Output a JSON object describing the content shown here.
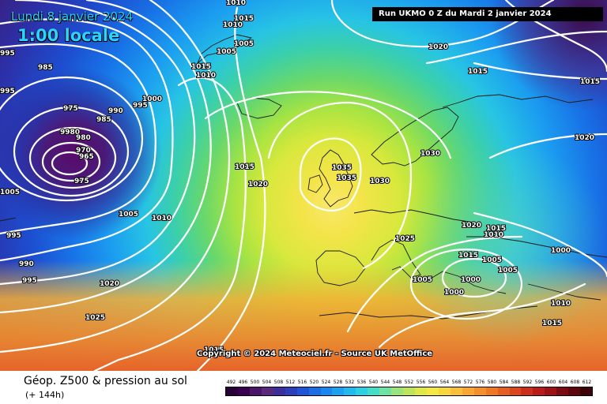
{
  "header": {
    "date": "Lundi 8 janvier 2024",
    "local_time": "1:00 locale",
    "run": "Run UKMO 0 Z du Mardi 2 janvier 2024"
  },
  "copyright": "Copyright © 2024 Meteociel.fr - Source UK MetOffice",
  "footer": {
    "caption": "Géop. Z500 & pression au sol",
    "subcaption": "(+ 144h)"
  },
  "legend": {
    "values": [
      "492",
      "496",
      "500",
      "504",
      "508",
      "512",
      "516",
      "520",
      "524",
      "528",
      "532",
      "536",
      "540",
      "544",
      "548",
      "552",
      "556",
      "560",
      "564",
      "568",
      "572",
      "576",
      "580",
      "584",
      "588",
      "592",
      "596",
      "600",
      "604",
      "608",
      "612"
    ],
    "colors": [
      "#2a0038",
      "#3a0050",
      "#4a1668",
      "#5a2a80",
      "#3c2f9c",
      "#2a3fb8",
      "#1f55d4",
      "#1b6de6",
      "#1a86f0",
      "#1ca0f2",
      "#22b9ee",
      "#2cd0e4",
      "#45dcc8",
      "#6de2a2",
      "#98e47a",
      "#bfe45c",
      "#dfe848",
      "#f4e844",
      "#f8d640",
      "#f8c03a",
      "#f8a832",
      "#f4902c",
      "#ee7826",
      "#e65e22",
      "#dc461e",
      "#cc2e1a",
      "#b81c1a",
      "#9c1216",
      "#7c0a12",
      "#5c060e",
      "#3c040a"
    ]
  },
  "map": {
    "isobar_labels": [
      "1010",
      "1015",
      "1010",
      "1005",
      "1005",
      "1015",
      "1010",
      "1020",
      "1015",
      "1015",
      "995",
      "995",
      "985",
      "975",
      "990",
      "995",
      "1000",
      "985",
      "9980",
      "980",
      "970",
      "965",
      "975",
      "1005",
      "1005",
      "1010",
      "1015",
      "1020",
      "1035",
      "1035",
      "1030",
      "1030",
      "1025",
      "1020",
      "1015",
      "1010",
      "1015",
      "1005",
      "1005",
      "1000",
      "1000",
      "1000",
      "1005",
      "995",
      "990",
      "995",
      "1020",
      "1025",
      "1015",
      "1010",
      "1015",
      "1020"
    ]
  }
}
